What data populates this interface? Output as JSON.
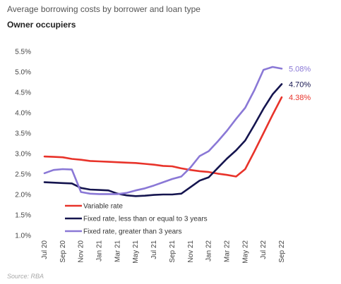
{
  "header": {
    "title": "Average borrowing costs by borrower and loan type",
    "subtitle": "Owner occupiers"
  },
  "footer": {
    "source": "Source: RBA"
  },
  "chart_data": {
    "type": "line",
    "ylim": [
      1.0,
      5.5
    ],
    "yticks": [
      "1.0%",
      "1.5%",
      "2.0%",
      "2.5%",
      "3.0%",
      "3.5%",
      "4.0%",
      "4.5%",
      "5.0%",
      "5.5%"
    ],
    "x": [
      "Jul 20",
      "Aug 20",
      "Sep 20",
      "Oct 20",
      "Nov 20",
      "Dec 20",
      "Jan 21",
      "Feb 21",
      "Mar 21",
      "Apr 21",
      "May 21",
      "Jun 21",
      "Jul 21",
      "Aug 21",
      "Sep 21",
      "Oct 21",
      "Nov 21",
      "Dec 21",
      "Jan 22",
      "Feb 22",
      "Mar 22",
      "Apr 22",
      "May 22",
      "Jun 22",
      "Jul 22",
      "Aug 22",
      "Sep 22"
    ],
    "xticks": [
      "Jul 20",
      "Sep 20",
      "Nov 20",
      "Jan 21",
      "Mar 21",
      "May 21",
      "Jul 21",
      "Sep 21",
      "Nov 21",
      "Jan 22",
      "Mar 22",
      "May 22",
      "Jul 22",
      "Sep 22"
    ],
    "grid": false,
    "legend_position": "bottom-left",
    "series": [
      {
        "name": "Variable rate",
        "color": "#e8332a",
        "end_label": "4.38%",
        "values": [
          2.93,
          2.92,
          2.91,
          2.87,
          2.85,
          2.82,
          2.81,
          2.8,
          2.79,
          2.78,
          2.77,
          2.75,
          2.73,
          2.7,
          2.69,
          2.64,
          2.6,
          2.57,
          2.55,
          2.51,
          2.48,
          2.44,
          2.62,
          3.05,
          3.5,
          3.95,
          4.38
        ]
      },
      {
        "name": "Fixed rate, less than or equal to 3 years",
        "color": "#15154f",
        "end_label": "4.70%",
        "values": [
          2.3,
          2.29,
          2.28,
          2.27,
          2.16,
          2.12,
          2.11,
          2.1,
          2.02,
          1.98,
          1.96,
          1.97,
          1.99,
          2.0,
          2.0,
          2.02,
          2.18,
          2.34,
          2.42,
          2.65,
          2.88,
          3.08,
          3.32,
          3.7,
          4.1,
          4.45,
          4.7
        ]
      },
      {
        "name": "Fixed rate, greater than 3 years",
        "color": "#8a78d6",
        "end_label": "5.08%",
        "values": [
          2.52,
          2.6,
          2.62,
          2.61,
          2.06,
          2.02,
          2.01,
          2.01,
          2.01,
          2.04,
          2.1,
          2.15,
          2.22,
          2.3,
          2.38,
          2.44,
          2.66,
          2.94,
          3.06,
          3.3,
          3.56,
          3.85,
          4.12,
          4.55,
          5.05,
          5.12,
          5.08
        ]
      }
    ]
  }
}
